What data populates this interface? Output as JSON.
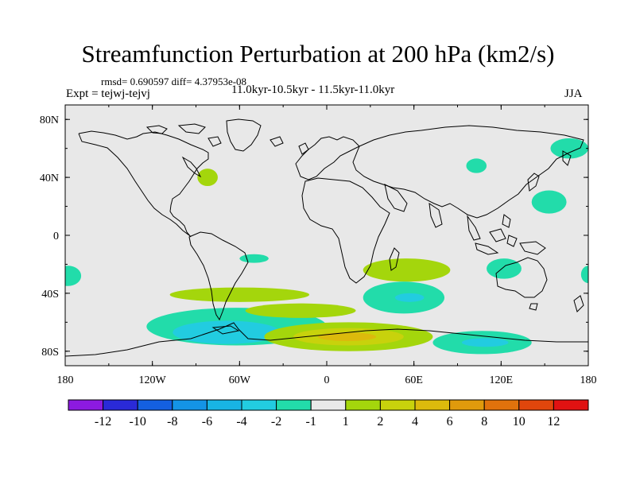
{
  "title": "Streamfunction Perturbation at 200 hPa (km2/s)",
  "stats_line": "rmsd= 0.690597 diff= 4.37953e-08",
  "experiment_line": "Expt = tejwj-tejvj",
  "period_line": "11.0kyr-10.5kyr - 11.5kyr-11.0kyr",
  "season": "JJA",
  "lat_ticks": [
    {
      "label": "80N",
      "lat": 80
    },
    {
      "label": "40N",
      "lat": 40
    },
    {
      "label": "0",
      "lat": 0
    },
    {
      "label": "40S",
      "lat": -40
    },
    {
      "label": "80S",
      "lat": -80
    }
  ],
  "lon_ticks": [
    {
      "label": "180",
      "lon": -180
    },
    {
      "label": "120W",
      "lon": -120
    },
    {
      "label": "60W",
      "lon": -60
    },
    {
      "label": "0",
      "lon": 0
    },
    {
      "label": "60E",
      "lon": 60
    },
    {
      "label": "120E",
      "lon": 120
    },
    {
      "label": "180",
      "lon": 180
    }
  ],
  "colorbar": {
    "colors": [
      "#8c1ae0",
      "#2a2ad8",
      "#1460e0",
      "#1494e6",
      "#18b4e4",
      "#22cce0",
      "#22dcaa",
      "#e8e8e8",
      "#a4d60c",
      "#c8d20c",
      "#dcba0c",
      "#e09a0c",
      "#e0720c",
      "#e0460c",
      "#e01212"
    ],
    "labels": [
      "-12",
      "-10",
      "-8",
      "-6",
      "-4",
      "-2",
      "-1",
      "1",
      "2",
      "4",
      "6",
      "8",
      "10",
      "12"
    ]
  },
  "regions": [
    {
      "lon": -62,
      "lat": -63,
      "rlon": 62,
      "rlat": 13,
      "color": "#22dcaa"
    },
    {
      "lon": -69,
      "lat": -67,
      "rlon": 37,
      "rlat": 8,
      "color": "#22cce0"
    },
    {
      "lon": -60,
      "lat": -41,
      "rlon": 48,
      "rlat": 5,
      "color": "#a4d60c"
    },
    {
      "lon": -18,
      "lat": -52,
      "rlon": 38,
      "rlat": 5,
      "color": "#a4d60c"
    },
    {
      "lon": 15,
      "lat": -70,
      "rlon": 58,
      "rlat": 10,
      "color": "#a4d60c"
    },
    {
      "lon": 15,
      "lat": -70,
      "rlon": 38,
      "rlat": 6,
      "color": "#c8d20c"
    },
    {
      "lon": 14,
      "lat": -70,
      "rlon": 20,
      "rlat": 3,
      "color": "#dcba0c"
    },
    {
      "lon": 55,
      "lat": -24,
      "rlon": 30,
      "rlat": 8,
      "color": "#a4d60c"
    },
    {
      "lon": 53,
      "lat": -43,
      "rlon": 28,
      "rlat": 11,
      "color": "#22dcaa"
    },
    {
      "lon": 57,
      "lat": -43,
      "rlon": 10,
      "rlat": 3,
      "color": "#22cce0"
    },
    {
      "lon": 107,
      "lat": -74,
      "rlon": 34,
      "rlat": 8,
      "color": "#22dcaa"
    },
    {
      "lon": 109,
      "lat": -74,
      "rlon": 16,
      "rlat": 3,
      "color": "#22cce0"
    },
    {
      "lon": 122,
      "lat": -23,
      "rlon": 12,
      "rlat": 7,
      "color": "#22dcaa"
    },
    {
      "lon": 153,
      "lat": 23,
      "rlon": 12,
      "rlat": 8,
      "color": "#22dcaa"
    },
    {
      "lon": 167,
      "lat": 60,
      "rlon": 13,
      "rlat": 7,
      "color": "#22dcaa"
    },
    {
      "lon": 103,
      "lat": 48,
      "rlon": 7,
      "rlat": 5,
      "color": "#22dcaa"
    },
    {
      "lon": -178,
      "lat": -28,
      "rlon": 9,
      "rlat": 7,
      "color": "#22dcaa"
    },
    {
      "lon": 180,
      "lat": -27,
      "rlon": 5,
      "rlat": 6,
      "color": "#22dcaa"
    },
    {
      "lon": -82,
      "lat": 40,
      "rlon": 7,
      "rlat": 6,
      "color": "#a4d60c"
    },
    {
      "lon": -50,
      "lat": -16,
      "rlon": 10,
      "rlat": 3,
      "color": "#22dcaa"
    }
  ]
}
